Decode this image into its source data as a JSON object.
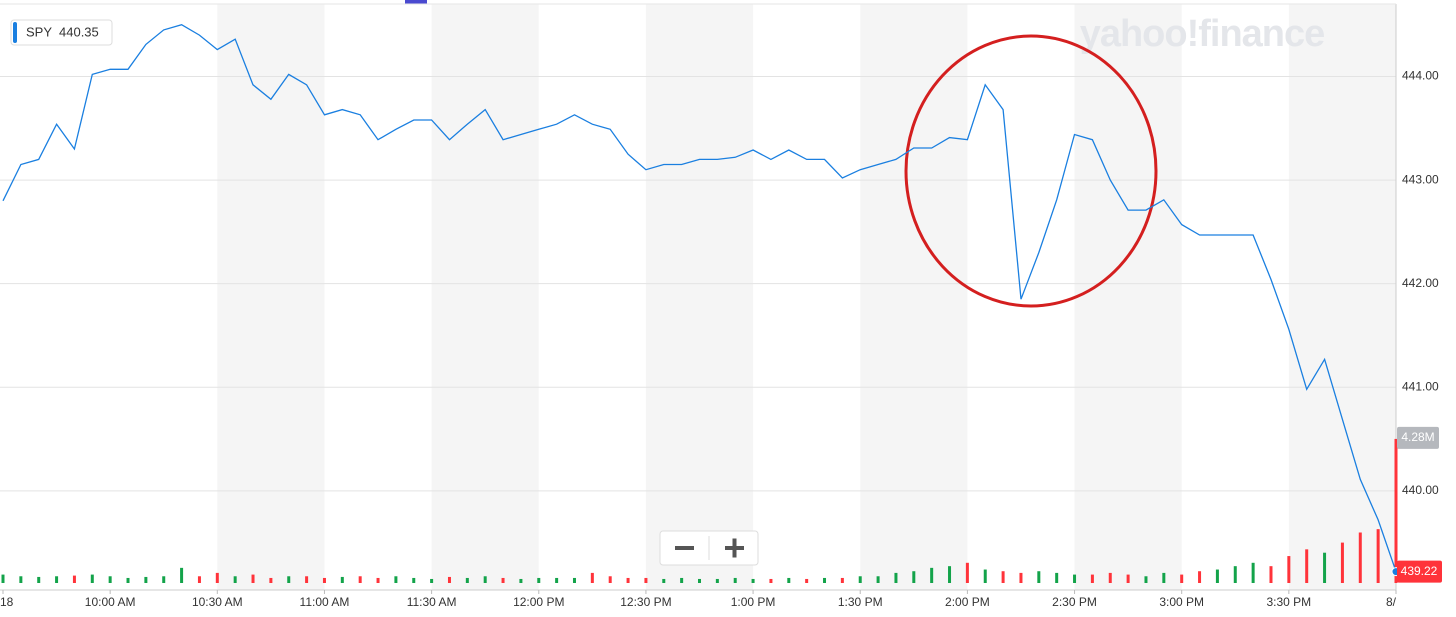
{
  "chart_data": {
    "type": "line",
    "watermark": "yahoo!finance",
    "quote": 440.35,
    "x": [
      "9:30 AM",
      "9:35 AM",
      "9:40 AM",
      "9:45 AM",
      "9:50 AM",
      "9:55 AM",
      "10:00 AM",
      "10:05 AM",
      "10:10 AM",
      "10:15 AM",
      "10:20 AM",
      "10:25 AM",
      "10:30 AM",
      "10:35 AM",
      "10:40 AM",
      "10:45 AM",
      "10:50 AM",
      "10:55 AM",
      "11:00 AM",
      "11:05 AM",
      "11:10 AM",
      "11:15 AM",
      "11:20 AM",
      "11:25 AM",
      "11:30 AM",
      "11:35 AM",
      "11:40 AM",
      "11:45 AM",
      "11:50 AM",
      "11:55 AM",
      "12:00 PM",
      "12:05 PM",
      "12:10 PM",
      "12:15 PM",
      "12:20 PM",
      "12:25 PM",
      "12:30 PM",
      "12:35 PM",
      "12:40 PM",
      "12:45 PM",
      "12:50 PM",
      "12:55 PM",
      "1:00 PM",
      "1:05 PM",
      "1:10 PM",
      "1:15 PM",
      "1:20 PM",
      "1:25 PM",
      "1:30 PM",
      "1:35 PM",
      "1:40 PM",
      "1:45 PM",
      "1:50 PM",
      "1:55 PM",
      "2:00 PM",
      "2:05 PM",
      "2:10 PM",
      "2:15 PM",
      "2:20 PM",
      "2:25 PM",
      "2:30 PM",
      "2:35 PM",
      "2:40 PM",
      "2:45 PM",
      "2:50 PM",
      "2:55 PM",
      "3:00 PM",
      "3:05 PM",
      "3:10 PM",
      "3:15 PM",
      "3:20 PM",
      "3:25 PM",
      "3:30 PM",
      "3:35 PM",
      "3:40 PM",
      "3:45 PM",
      "3:50 PM",
      "3:55 PM",
      "4:00 PM"
    ],
    "series": [
      {
        "name": "SPY",
        "color": "#1a7fe0",
        "values": [
          442.8,
          443.15,
          443.2,
          443.54,
          443.3,
          444.02,
          444.07,
          444.07,
          444.31,
          444.45,
          444.5,
          444.4,
          444.26,
          444.36,
          443.92,
          443.78,
          444.02,
          443.92,
          443.63,
          443.68,
          443.63,
          443.39,
          443.49,
          443.58,
          443.58,
          443.39,
          443.54,
          443.68,
          443.39,
          443.44,
          443.49,
          443.54,
          443.63,
          443.54,
          443.49,
          443.25,
          443.1,
          443.15,
          443.15,
          443.2,
          443.2,
          443.22,
          443.29,
          443.2,
          443.29,
          443.2,
          443.2,
          443.02,
          443.1,
          443.15,
          443.2,
          443.31,
          443.31,
          443.41,
          443.39,
          443.92,
          443.68,
          441.85,
          442.3,
          442.81,
          443.44,
          443.39,
          443.0,
          442.71,
          442.71,
          442.81,
          442.57,
          442.47,
          442.47,
          442.47,
          442.47,
          442.04,
          441.56,
          440.98,
          441.27,
          440.69,
          440.11,
          439.72,
          439.22
        ]
      }
    ],
    "volume": {
      "up_color": "#13a34a",
      "down_color": "#ff333a",
      "last_value_label": "4.28M",
      "values": [
        0.25,
        0.2,
        0.18,
        0.2,
        0.22,
        0.25,
        0.2,
        0.15,
        0.18,
        0.2,
        0.45,
        0.2,
        0.3,
        0.2,
        0.25,
        0.15,
        0.2,
        0.2,
        0.15,
        0.18,
        0.2,
        0.15,
        0.2,
        0.15,
        0.12,
        0.18,
        0.15,
        0.2,
        0.15,
        0.12,
        0.15,
        0.15,
        0.15,
        0.3,
        0.2,
        0.15,
        0.15,
        0.12,
        0.15,
        0.12,
        0.12,
        0.15,
        0.12,
        0.12,
        0.15,
        0.12,
        0.15,
        0.15,
        0.2,
        0.2,
        0.3,
        0.35,
        0.45,
        0.5,
        0.6,
        0.4,
        0.35,
        0.3,
        0.35,
        0.3,
        0.25,
        0.25,
        0.3,
        0.25,
        0.2,
        0.3,
        0.25,
        0.35,
        0.4,
        0.5,
        0.6,
        0.5,
        0.8,
        1.0,
        0.9,
        1.2,
        1.5,
        1.6,
        4.28
      ]
    },
    "ylim": [
      439.11,
      444.7
    ],
    "yticks": [
      {
        "value": 440,
        "label": "440.00"
      },
      {
        "value": 441,
        "label": "441.00"
      },
      {
        "value": 442,
        "label": "442.00"
      },
      {
        "value": 443,
        "label": "443.00"
      },
      {
        "value": 444,
        "label": "444.00"
      }
    ],
    "y2lim": [
      0,
      17.2
    ],
    "xticks": [
      {
        "value": "9:30 AM",
        "label": "18"
      },
      "10:00 AM",
      "10:30 AM",
      "11:00 AM",
      "11:30 AM",
      "12:00 PM",
      "12:30 PM",
      "1:00 PM",
      "1:30 PM",
      "2:00 PM",
      "2:30 PM",
      "3:00 PM",
      "3:30 PM",
      {
        "value": "4:00 PM",
        "label": "8/"
      }
    ],
    "grid": true
  }
}
